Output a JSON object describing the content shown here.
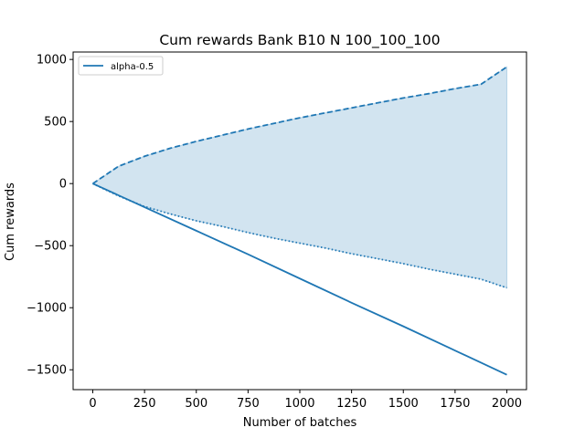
{
  "chart_data": {
    "type": "line",
    "title": "Cum rewards Bank B10 N 100_100_100",
    "xlabel": "Number of batches",
    "ylabel": "Cum rewards",
    "xlim": [
      -95,
      2095
    ],
    "ylim": [
      -1660,
      1060
    ],
    "x_ticks": [
      0,
      250,
      500,
      750,
      1000,
      1250,
      1500,
      1750,
      2000
    ],
    "y_ticks": [
      -1500,
      -1000,
      -500,
      0,
      500,
      1000
    ],
    "legend_position": "top-left",
    "colors": {
      "series": "#1f77b4",
      "band": "#1f77b4"
    },
    "series": [
      {
        "name": "alpha-0.5",
        "style": "solid",
        "x": [
          0,
          250,
          500,
          750,
          1000,
          1250,
          1500,
          1750,
          2000
        ],
        "values": [
          0,
          -190,
          -380,
          -570,
          -765,
          -960,
          -1150,
          -1345,
          -1540
        ]
      }
    ],
    "band": {
      "x": [
        0,
        125,
        250,
        375,
        500,
        625,
        750,
        875,
        1000,
        1125,
        1250,
        1375,
        1500,
        1625,
        1750,
        1875,
        2000
      ],
      "upper": [
        0,
        140,
        220,
        285,
        340,
        390,
        440,
        485,
        530,
        570,
        610,
        650,
        690,
        725,
        765,
        800,
        940
      ],
      "lower": [
        0,
        -100,
        -185,
        -245,
        -300,
        -345,
        -395,
        -440,
        -480,
        -520,
        -565,
        -605,
        -645,
        -690,
        -730,
        -770,
        -840
      ]
    }
  }
}
